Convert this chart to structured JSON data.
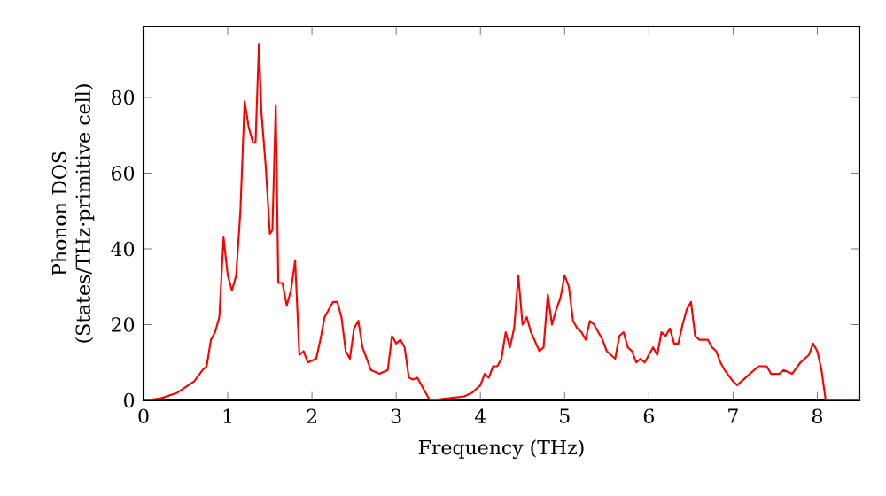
{
  "chart_data": {
    "type": "line",
    "xlabel": "Frequency (THz)",
    "ylabel": "Phonon DOS (States/THz·primitive cell)",
    "xlim": [
      0,
      8.5
    ],
    "ylim": [
      0,
      98.7
    ],
    "xticks": [
      0,
      1,
      2,
      3,
      4,
      5,
      6,
      7,
      8
    ],
    "yticks": [
      0,
      20,
      40,
      60,
      80
    ],
    "series": [
      {
        "color": "#ff0000",
        "x": [
          0,
          0.2,
          0.4,
          0.6,
          0.7,
          0.75,
          0.8,
          0.85,
          0.9,
          0.95,
          1.0,
          1.05,
          1.1,
          1.15,
          1.2,
          1.25,
          1.3,
          1.33,
          1.37,
          1.4,
          1.45,
          1.5,
          1.53,
          1.57,
          1.6,
          1.65,
          1.7,
          1.75,
          1.8,
          1.85,
          1.9,
          1.95,
          2.05,
          2.1,
          2.15,
          2.25,
          2.3,
          2.35,
          2.4,
          2.45,
          2.5,
          2.55,
          2.6,
          2.7,
          2.8,
          2.9,
          2.95,
          3.0,
          3.05,
          3.1,
          3.15,
          3.2,
          3.25,
          3.35,
          3.4,
          3.6,
          3.8,
          3.9,
          4.0,
          4.05,
          4.1,
          4.15,
          4.2,
          4.25,
          4.3,
          4.35,
          4.4,
          4.45,
          4.5,
          4.55,
          4.6,
          4.7,
          4.75,
          4.8,
          4.85,
          4.9,
          4.95,
          5.0,
          5.05,
          5.1,
          5.15,
          5.2,
          5.25,
          5.3,
          5.35,
          5.4,
          5.45,
          5.5,
          5.55,
          5.6,
          5.65,
          5.7,
          5.75,
          5.8,
          5.85,
          5.9,
          5.95,
          6.05,
          6.1,
          6.15,
          6.2,
          6.25,
          6.3,
          6.35,
          6.4,
          6.45,
          6.5,
          6.55,
          6.6,
          6.7,
          6.75,
          6.8,
          6.85,
          6.9,
          7.0,
          7.05,
          7.1,
          7.2,
          7.3,
          7.4,
          7.45,
          7.55,
          7.6,
          7.7,
          7.8,
          7.85,
          7.9,
          7.95,
          8.0,
          8.05,
          8.1,
          8.5
        ],
        "values": [
          0,
          0.5,
          2,
          5,
          8,
          9,
          16,
          18,
          22,
          43,
          33,
          29,
          33,
          50,
          79,
          72,
          68,
          68,
          94,
          76,
          62,
          44,
          45,
          78,
          31,
          31,
          25,
          29,
          37,
          12,
          13,
          10,
          11,
          16,
          22,
          26,
          26,
          22,
          13,
          11,
          19,
          21,
          14,
          8,
          7,
          8,
          17,
          15,
          16,
          14,
          6,
          5.5,
          6,
          2,
          0,
          0.5,
          1,
          2,
          4,
          7,
          6,
          9,
          9,
          11,
          18,
          14,
          19,
          33,
          20,
          22,
          18,
          13,
          14,
          28,
          20,
          24,
          27,
          33,
          30,
          21,
          19,
          18,
          16,
          21,
          20,
          18,
          16,
          13,
          12,
          11,
          17,
          18,
          14,
          13,
          10,
          11,
          10,
          14,
          12,
          18,
          17,
          19,
          15,
          15,
          20,
          24,
          26,
          17,
          16,
          16,
          14,
          13,
          10,
          8,
          5,
          4,
          5,
          7,
          9,
          9,
          7,
          7,
          8,
          7,
          10,
          11,
          12,
          15,
          13,
          8,
          0,
          0
        ]
      }
    ]
  }
}
